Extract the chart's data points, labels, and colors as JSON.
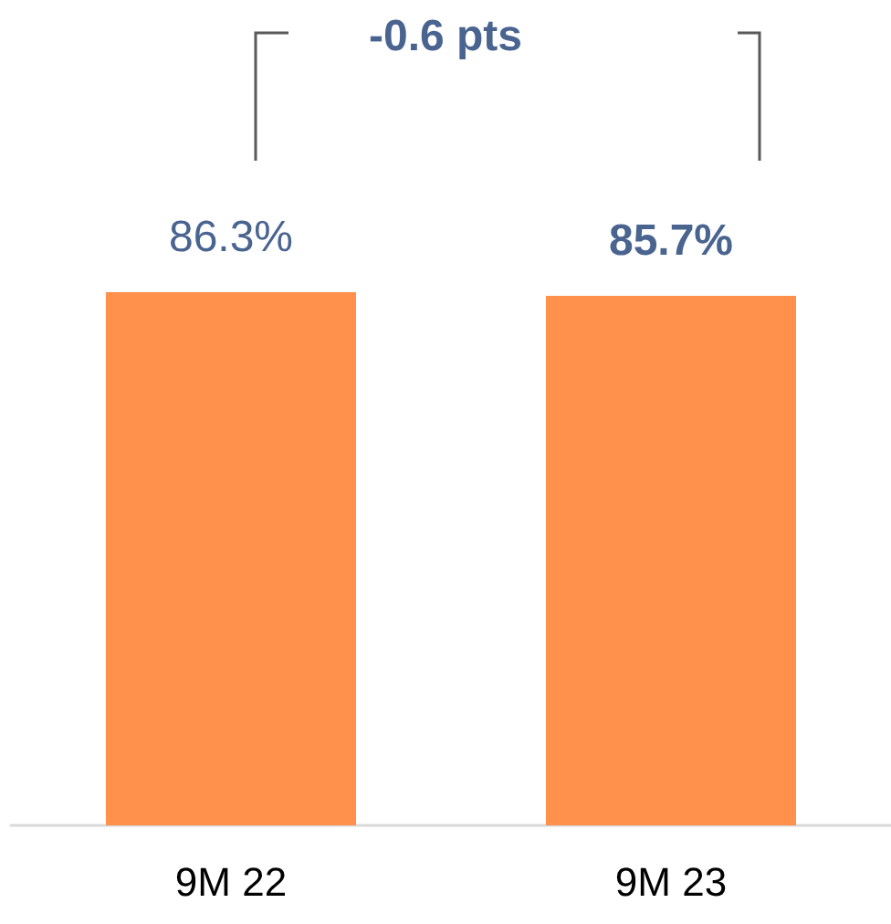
{
  "chart_data": {
    "type": "bar",
    "categories": [
      "9M 22",
      "9M 23"
    ],
    "values": [
      86.3,
      85.7
    ],
    "color": "#ff914d",
    "value_labels": [
      "86.3%",
      "85.7%"
    ],
    "annotations": [
      "-0.6 pts"
    ]
  }
}
